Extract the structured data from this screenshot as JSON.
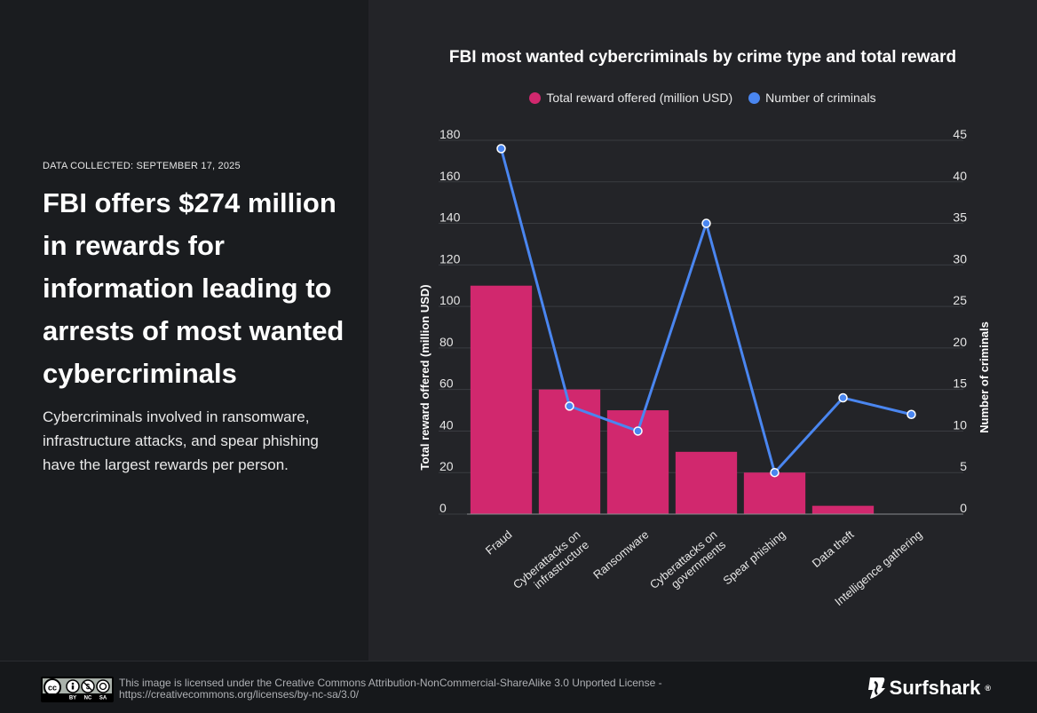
{
  "story": {
    "date_line": "DATA COLLECTED: SEPTEMBER 17, 2025",
    "headline": "FBI offers $274 million in rewards for information leading to arrests of most wanted cybercriminals",
    "subtext": "Cybercriminals involved in ransomware, infrastructure attacks, and spear phishing have the largest rewards per person."
  },
  "footer": {
    "license_line1": "This image is licensed under the Creative Commons Attribution-NonCommercial-ShareAlike 3.0 Unported License -",
    "license_line2": "https://creativecommons.org/licenses/by-nc-sa/3.0/",
    "brand": "Surfshark",
    "brand_mark": "®",
    "cc_labels": [
      "BY",
      "NC",
      "SA"
    ]
  },
  "colors": {
    "bar": "#d1286e",
    "line": "#4a86f0",
    "grid": "#3a3c41",
    "text": "#e6e6e6"
  },
  "chart_data": {
    "type": "bar+line",
    "title": "FBI most wanted cybercriminals by crime type and total reward",
    "categories": [
      "Fraud",
      "Cyberattacks on infrastructure",
      "Ransomware",
      "Cyberattacks on governments",
      "Spear phishing",
      "Data theft",
      "Intelligence gathering"
    ],
    "category_lines": [
      [
        "Fraud"
      ],
      [
        "Cyberattacks on",
        "infrastructure"
      ],
      [
        "Ransomware"
      ],
      [
        "Cyberattacks on",
        "governments"
      ],
      [
        "Spear phishing"
      ],
      [
        "Data theft"
      ],
      [
        "Intelligence gathering"
      ]
    ],
    "series": [
      {
        "name": "Total reward offered (million USD)",
        "type": "bar",
        "axis": "left",
        "values": [
          110,
          60,
          50,
          30,
          20,
          4,
          0
        ]
      },
      {
        "name": "Number of criminals",
        "type": "line",
        "axis": "right",
        "values": [
          44,
          13,
          10,
          35,
          5,
          14,
          12
        ]
      }
    ],
    "ylabel_left": "Total reward offered (million USD)",
    "ylabel_right": "Number of criminals",
    "ylim_left": [
      0,
      180
    ],
    "ylim_right": [
      0,
      45
    ],
    "yticks_left": [
      0,
      20,
      40,
      60,
      80,
      100,
      120,
      140,
      160,
      180
    ],
    "yticks_right": [
      0,
      5,
      10,
      15,
      20,
      25,
      30,
      35,
      40,
      45
    ],
    "grid": true,
    "legend_position": "top-center"
  }
}
